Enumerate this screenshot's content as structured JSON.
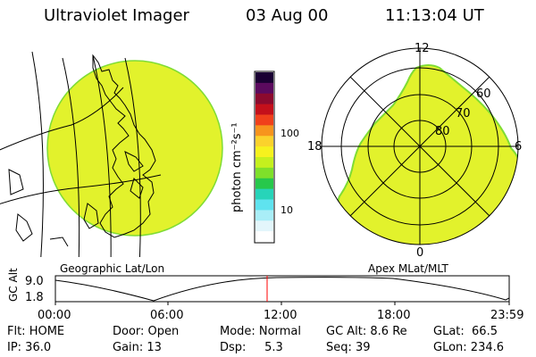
{
  "header": {
    "instrument": "Ultraviolet Imager",
    "date": "03 Aug 00",
    "time": "11:13:04 UT"
  },
  "left_panel": {
    "label": "Geographic Lat/Lon"
  },
  "right_panel": {
    "label": "Apex MLat/MLT",
    "mlt_labels": [
      "12",
      "18",
      "6",
      "0"
    ],
    "mlat_labels": [
      "60",
      "70",
      "80"
    ]
  },
  "colorbar": {
    "unit_label": "photon cm⁻²s⁻¹",
    "ticks": [
      "100",
      "10"
    ],
    "colors": [
      "#1a0033",
      "#5b0a5e",
      "#8c0a2e",
      "#c4101b",
      "#f0401b",
      "#f7941d",
      "#fbd22c",
      "#f6f21e",
      "#c5f01e",
      "#7fe02a",
      "#27c84b",
      "#27d4b9",
      "#5fe3ef",
      "#a9eef7",
      "#e3f6fb",
      "#ffffff"
    ]
  },
  "timeline": {
    "axis_label": "GC Alt",
    "y_labels": [
      "9.0",
      "1.8"
    ],
    "x_labels": [
      "00:00",
      "06:00",
      "12:00",
      "18:00",
      "23:59"
    ],
    "marker_color": "#ff0000"
  },
  "footer": {
    "row1": [
      "Flt: HOME",
      "Door: Open",
      "Mode: Normal",
      "GC Alt: 8.6 Re",
      "GLat:  66.5"
    ],
    "row2": [
      "IP: 36.0",
      "Gain: 13",
      "Dsp:     5.3",
      "Seq: 39",
      "GLon: 234.6"
    ]
  },
  "colors": {
    "aurora_fill": "#e2f22c",
    "aurora_edge": "#7fdc34",
    "line": "#000000"
  }
}
